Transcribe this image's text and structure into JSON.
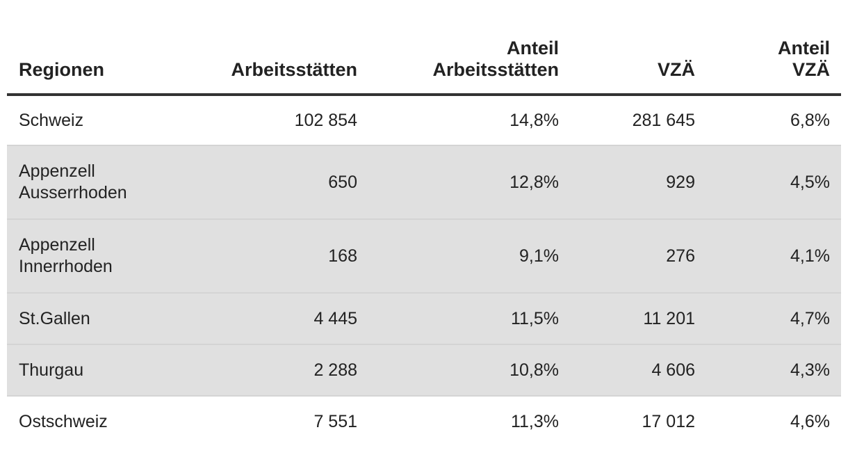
{
  "table": {
    "header": [
      "Regionen",
      "Arbeitsstätten",
      "Anteil\nArbeitsstätten",
      "VZÄ",
      "Anteil\nVZÄ"
    ],
    "rows": [
      [
        "Schweiz",
        "102 854",
        "14,8%",
        "281 645",
        "6,8%"
      ],
      [
        "Appenzell\nAusserrhoden",
        "650",
        "12,8%",
        "929",
        "4,5%"
      ],
      [
        "Appenzell\nInnerrhoden",
        "168",
        "9,1%",
        "276",
        "4,1%"
      ],
      [
        "St.Gallen",
        "4 445",
        "11,5%",
        "11 201",
        "4,7%"
      ],
      [
        "Thurgau",
        "2 288",
        "10,8%",
        "4 606",
        "4,3%"
      ],
      [
        "Ostschweiz",
        "7 551",
        "11,3%",
        "17 012",
        "4,6%"
      ]
    ]
  }
}
